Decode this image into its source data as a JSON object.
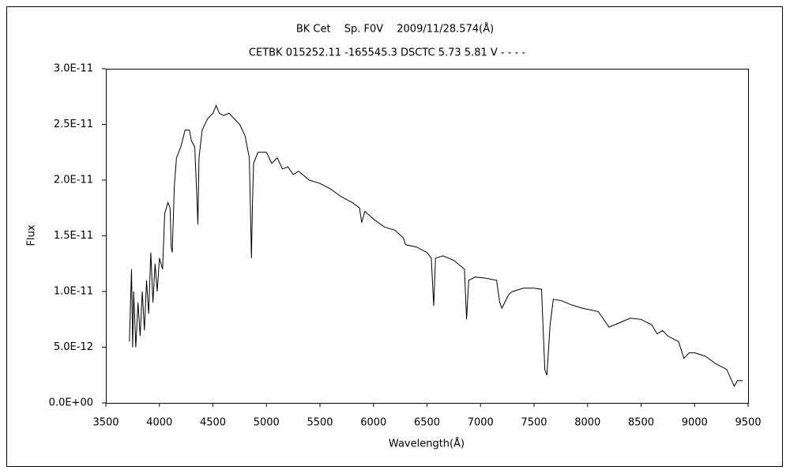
{
  "chart_data": {
    "type": "line",
    "title": "BK Cet　 Sp. F0V　 2009/11/28.574(Å)",
    "subtitle": "CETBK 015252.11 -165545.3 DSCTC 5.73 5.81 V - - - -",
    "xlabel": "Wavelength(Å)",
    "ylabel": "Flux",
    "xlim": [
      3500,
      9500
    ],
    "xticks": [
      3500,
      4000,
      4500,
      5000,
      5500,
      6000,
      6500,
      7000,
      7500,
      8000,
      8500,
      9000,
      9500
    ],
    "ylim": [
      0,
      3e-11
    ],
    "yticks": [
      {
        "value": 0,
        "label": "0.0E+00"
      },
      {
        "value": 5e-12,
        "label": "5.0E-12"
      },
      {
        "value": 1e-11,
        "label": "1.0E-11"
      },
      {
        "value": 1.5e-11,
        "label": "1.5E-11"
      },
      {
        "value": 2e-11,
        "label": "2.0E-11"
      },
      {
        "value": 2.5e-11,
        "label": "2.5E-11"
      },
      {
        "value": 3e-11,
        "label": "3.0E-11"
      }
    ],
    "grid": false,
    "series": [
      {
        "color": "#000000",
        "x": [
          3720,
          3740,
          3750,
          3760,
          3780,
          3800,
          3820,
          3840,
          3860,
          3880,
          3900,
          3920,
          3940,
          3960,
          3980,
          4000,
          4030,
          4050,
          4080,
          4100,
          4110,
          4120,
          4140,
          4160,
          4200,
          4240,
          4280,
          4300,
          4330,
          4350,
          4360,
          4370,
          4400,
          4450,
          4500,
          4530,
          4560,
          4600,
          4650,
          4700,
          4750,
          4800,
          4840,
          4860,
          4870,
          4880,
          4920,
          5000,
          5050,
          5100,
          5150,
          5200,
          5250,
          5300,
          5400,
          5500,
          5600,
          5700,
          5800,
          5870,
          5890,
          5920,
          6000,
          6100,
          6200,
          6280,
          6300,
          6400,
          6500,
          6540,
          6563,
          6580,
          6650,
          6750,
          6850,
          6870,
          6890,
          6950,
          7050,
          7150,
          7180,
          7200,
          7250,
          7270,
          7300,
          7400,
          7500,
          7570,
          7600,
          7620,
          7650,
          7680,
          7750,
          7850,
          7950,
          8100,
          8200,
          8300,
          8400,
          8500,
          8600,
          8650,
          8700,
          8750,
          8850,
          8900,
          8950,
          9000,
          9100,
          9200,
          9300,
          9370,
          9400,
          9450
        ],
        "values": [
          5.5e-12,
          1.2e-11,
          5e-12,
          1e-11,
          5e-12,
          9e-12,
          6e-12,
          1e-11,
          6.5e-12,
          1.1e-11,
          8e-12,
          1.35e-11,
          9e-12,
          1.25e-11,
          1e-11,
          1.3e-11,
          1.2e-11,
          1.7e-11,
          1.8e-11,
          1.75e-11,
          1.4e-11,
          1.35e-11,
          1.95e-11,
          2.2e-11,
          2.3e-11,
          2.45e-11,
          2.45e-11,
          2.35e-11,
          2.3e-11,
          1.85e-11,
          1.6e-11,
          2.2e-11,
          2.45e-11,
          2.55e-11,
          2.6e-11,
          2.67e-11,
          2.6e-11,
          2.58e-11,
          2.6e-11,
          2.55e-11,
          2.5e-11,
          2.4e-11,
          2.2e-11,
          1.3e-11,
          1.8e-11,
          2.15e-11,
          2.25e-11,
          2.25e-11,
          2.15e-11,
          2.2e-11,
          2.1e-11,
          2.12e-11,
          2.05e-11,
          2.08e-11,
          2e-11,
          1.97e-11,
          1.92e-11,
          1.85e-11,
          1.8e-11,
          1.75e-11,
          1.62e-11,
          1.72e-11,
          1.65e-11,
          1.58e-11,
          1.55e-11,
          1.48e-11,
          1.42e-11,
          1.4e-11,
          1.35e-11,
          1.3e-11,
          8.7e-12,
          1.3e-11,
          1.32e-11,
          1.28e-11,
          1.2e-11,
          7.5e-12,
          1.1e-11,
          1.13e-11,
          1.12e-11,
          1.1e-11,
          9e-12,
          8.5e-12,
          9.5e-12,
          9.8e-12,
          1e-11,
          1.03e-11,
          1.03e-11,
          1.02e-11,
          3e-12,
          2.5e-12,
          7e-12,
          9.3e-12,
          9.2e-12,
          8.8e-12,
          8.5e-12,
          8.2e-12,
          6.8e-12,
          7.2e-12,
          7.6e-12,
          7.5e-12,
          7e-12,
          6.2e-12,
          6.5e-12,
          6e-12,
          5.5e-12,
          4e-12,
          4.5e-12,
          4.5e-12,
          4.2e-12,
          3.5e-12,
          3e-12,
          1.5e-12,
          2e-12,
          2e-12
        ]
      }
    ]
  }
}
